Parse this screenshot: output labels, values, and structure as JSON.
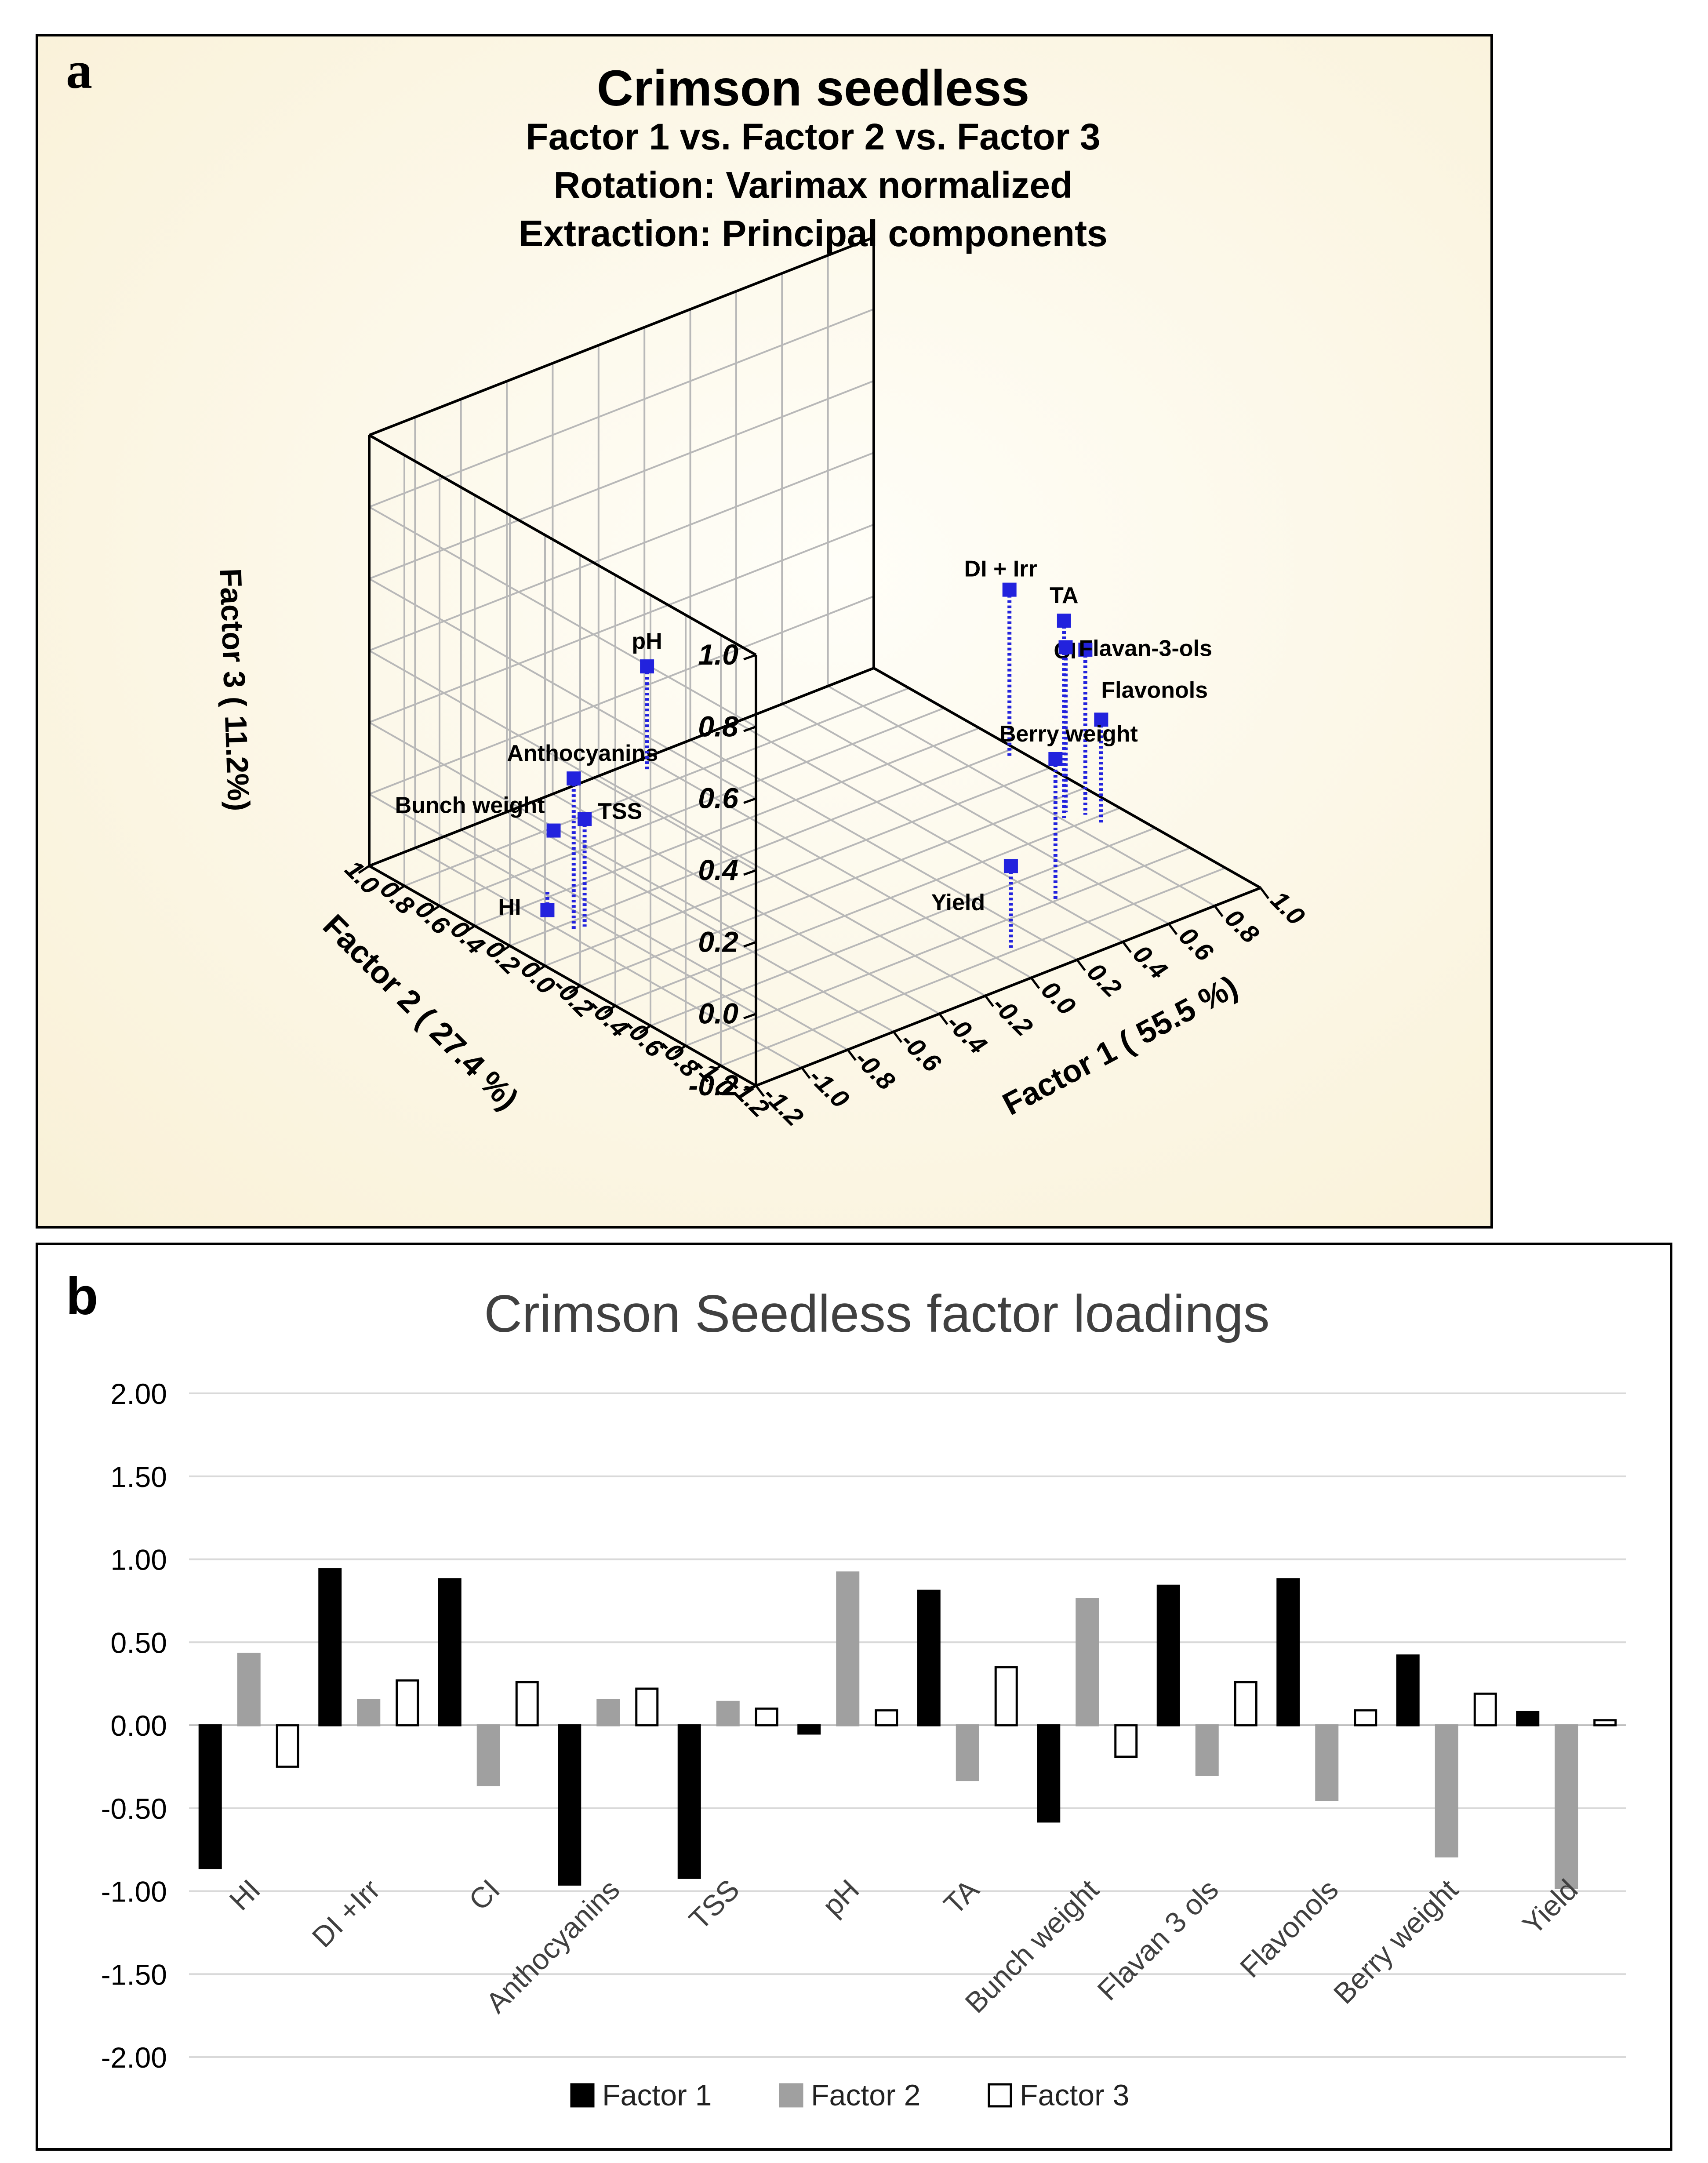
{
  "panel_a": {
    "letter": "a",
    "title": "Crimson seedless",
    "subtitle1": "Factor 1 vs. Factor 2 vs. Factor 3",
    "subtitle2": "Rotation: Varimax normalized",
    "subtitle3": "Extraction: Principal components",
    "zlabel": "Factor 3 ( 11.2%)",
    "ylabel": "Factor 2 ( 27.4 %)",
    "xlabel": "Factor 1 ( 55.5 %)",
    "z_ticks": [
      "1.0",
      "0.8",
      "0.6",
      "0.4",
      "0.2",
      "0.0",
      "-0.2"
    ],
    "y_ticks": [
      "1.0",
      "0.8",
      "0.6",
      "0.4",
      "0.2",
      "0.0",
      "-0.2",
      "-0.4",
      "-0.6",
      "-0.8",
      "-1.0",
      "-1.2"
    ],
    "x_ticks": [
      "1.0",
      "0.8",
      "0.6",
      "0.4",
      "0.2",
      "0.0",
      "-0.2",
      "-0.4",
      "-0.6",
      "-0.8",
      "-1.0",
      "-1.2"
    ],
    "colors": {
      "background": "#fbf6e4",
      "point": "#2222dd",
      "grid": "#b8b8b8"
    }
  },
  "panel_b": {
    "letter": "b",
    "colors": {
      "factor1": "#000000",
      "factor2": "#a0a0a0",
      "factor3": "#ffffff",
      "grid": "#d9d9d9"
    }
  },
  "chart_data": [
    {
      "type": "scatter",
      "title": "Crimson seedless",
      "subtitle": [
        "Factor 1 vs. Factor 2 vs. Factor 3",
        "Rotation: Varimax normalized",
        "Extraction: Principal components"
      ],
      "xlabel": "Factor 1 ( 55.5 %)",
      "ylabel": "Factor 2 ( 27.4 %)",
      "zlabel": "Factor 3 ( 11.2%)",
      "xlim": [
        -1.2,
        1.0
      ],
      "ylim": [
        -1.2,
        1.0
      ],
      "zlim": [
        -0.2,
        1.0
      ],
      "grid": true,
      "points": [
        {
          "label": "HI",
          "x": -0.86,
          "y": 0.43,
          "z": -0.25
        },
        {
          "label": "DI + Irr",
          "x": 0.94,
          "y": 0.15,
          "z": 0.27
        },
        {
          "label": "CI",
          "x": 0.88,
          "y": -0.36,
          "z": 0.26
        },
        {
          "label": "Anthocyanins",
          "x": -0.96,
          "y": 0.15,
          "z": 0.22
        },
        {
          "label": "TSS",
          "x": -0.92,
          "y": 0.14,
          "z": 0.1
        },
        {
          "label": "pH",
          "x": -0.05,
          "y": 0.92,
          "z": 0.09
        },
        {
          "label": "TA",
          "x": 0.81,
          "y": -0.33,
          "z": 0.35
        },
        {
          "label": "Bunch weight",
          "x": -0.58,
          "y": 0.76,
          "z": -0.19
        },
        {
          "label": "Flavan-3-ols",
          "x": 0.84,
          "y": -0.3,
          "z": 0.26
        },
        {
          "label": "Flavonols",
          "x": 0.88,
          "y": -0.45,
          "z": 0.09
        },
        {
          "label": "Berry weight",
          "x": 0.42,
          "y": -0.79,
          "z": 0.19
        },
        {
          "label": "Yield",
          "x": 0.08,
          "y": -0.98,
          "z": 0.03
        }
      ]
    },
    {
      "type": "bar",
      "title": "Crimson Seedless factor loadings",
      "categories": [
        "HI",
        "DI +Irr",
        "CI",
        "Anthocyanins",
        "TSS",
        "pH",
        "TA",
        "Bunch weight",
        "Flavan 3 ols",
        "Flavonols",
        "Berry weight",
        "Yield"
      ],
      "series": [
        {
          "name": "Factor 1",
          "values": [
            -0.86,
            0.94,
            0.88,
            -0.96,
            -0.92,
            -0.05,
            0.81,
            -0.58,
            0.84,
            0.88,
            0.42,
            0.08
          ]
        },
        {
          "name": "Factor 2",
          "values": [
            0.43,
            0.15,
            -0.36,
            0.15,
            0.14,
            0.92,
            -0.33,
            0.76,
            -0.3,
            -0.45,
            -0.79,
            -0.98
          ]
        },
        {
          "name": "Factor 3",
          "values": [
            -0.25,
            0.27,
            0.26,
            0.22,
            0.1,
            0.09,
            0.35,
            -0.19,
            0.26,
            0.09,
            0.19,
            0.03
          ]
        }
      ],
      "ylim": [
        -2.0,
        2.0
      ],
      "yticks": [
        "2.00",
        "1.50",
        "1.00",
        "0.50",
        "0.00",
        "-0.50",
        "-1.00",
        "-1.50",
        "-2.00"
      ],
      "grid": true,
      "legend": "bottom"
    }
  ]
}
